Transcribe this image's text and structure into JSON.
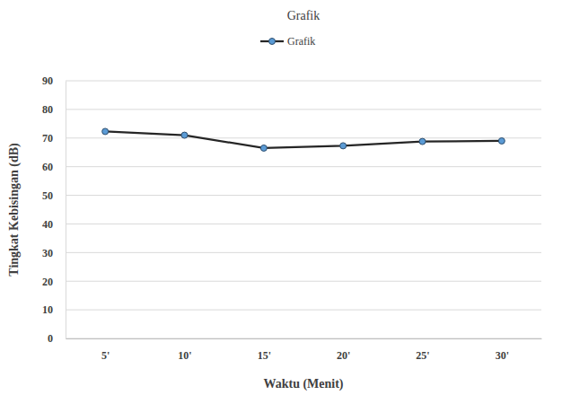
{
  "chart_data": {
    "type": "line",
    "title": "Grafik",
    "x_label": "Waktu (Menit)",
    "y_label": "Tingkat Kebisingan (dB)",
    "categories": [
      "5'",
      "10'",
      "15'",
      "20'",
      "25'",
      "30'"
    ],
    "series": [
      {
        "name": "Grafik",
        "color": "#262626",
        "marker": "circle",
        "line_style": "solid",
        "values": [
          72.3,
          71.0,
          66.5,
          67.3,
          68.8,
          69.0
        ]
      }
    ],
    "ylim": [
      0,
      90
    ],
    "yticks": [
      0,
      10,
      20,
      30,
      40,
      50,
      60,
      70,
      80,
      90
    ],
    "grid": true,
    "legend": "top"
  }
}
